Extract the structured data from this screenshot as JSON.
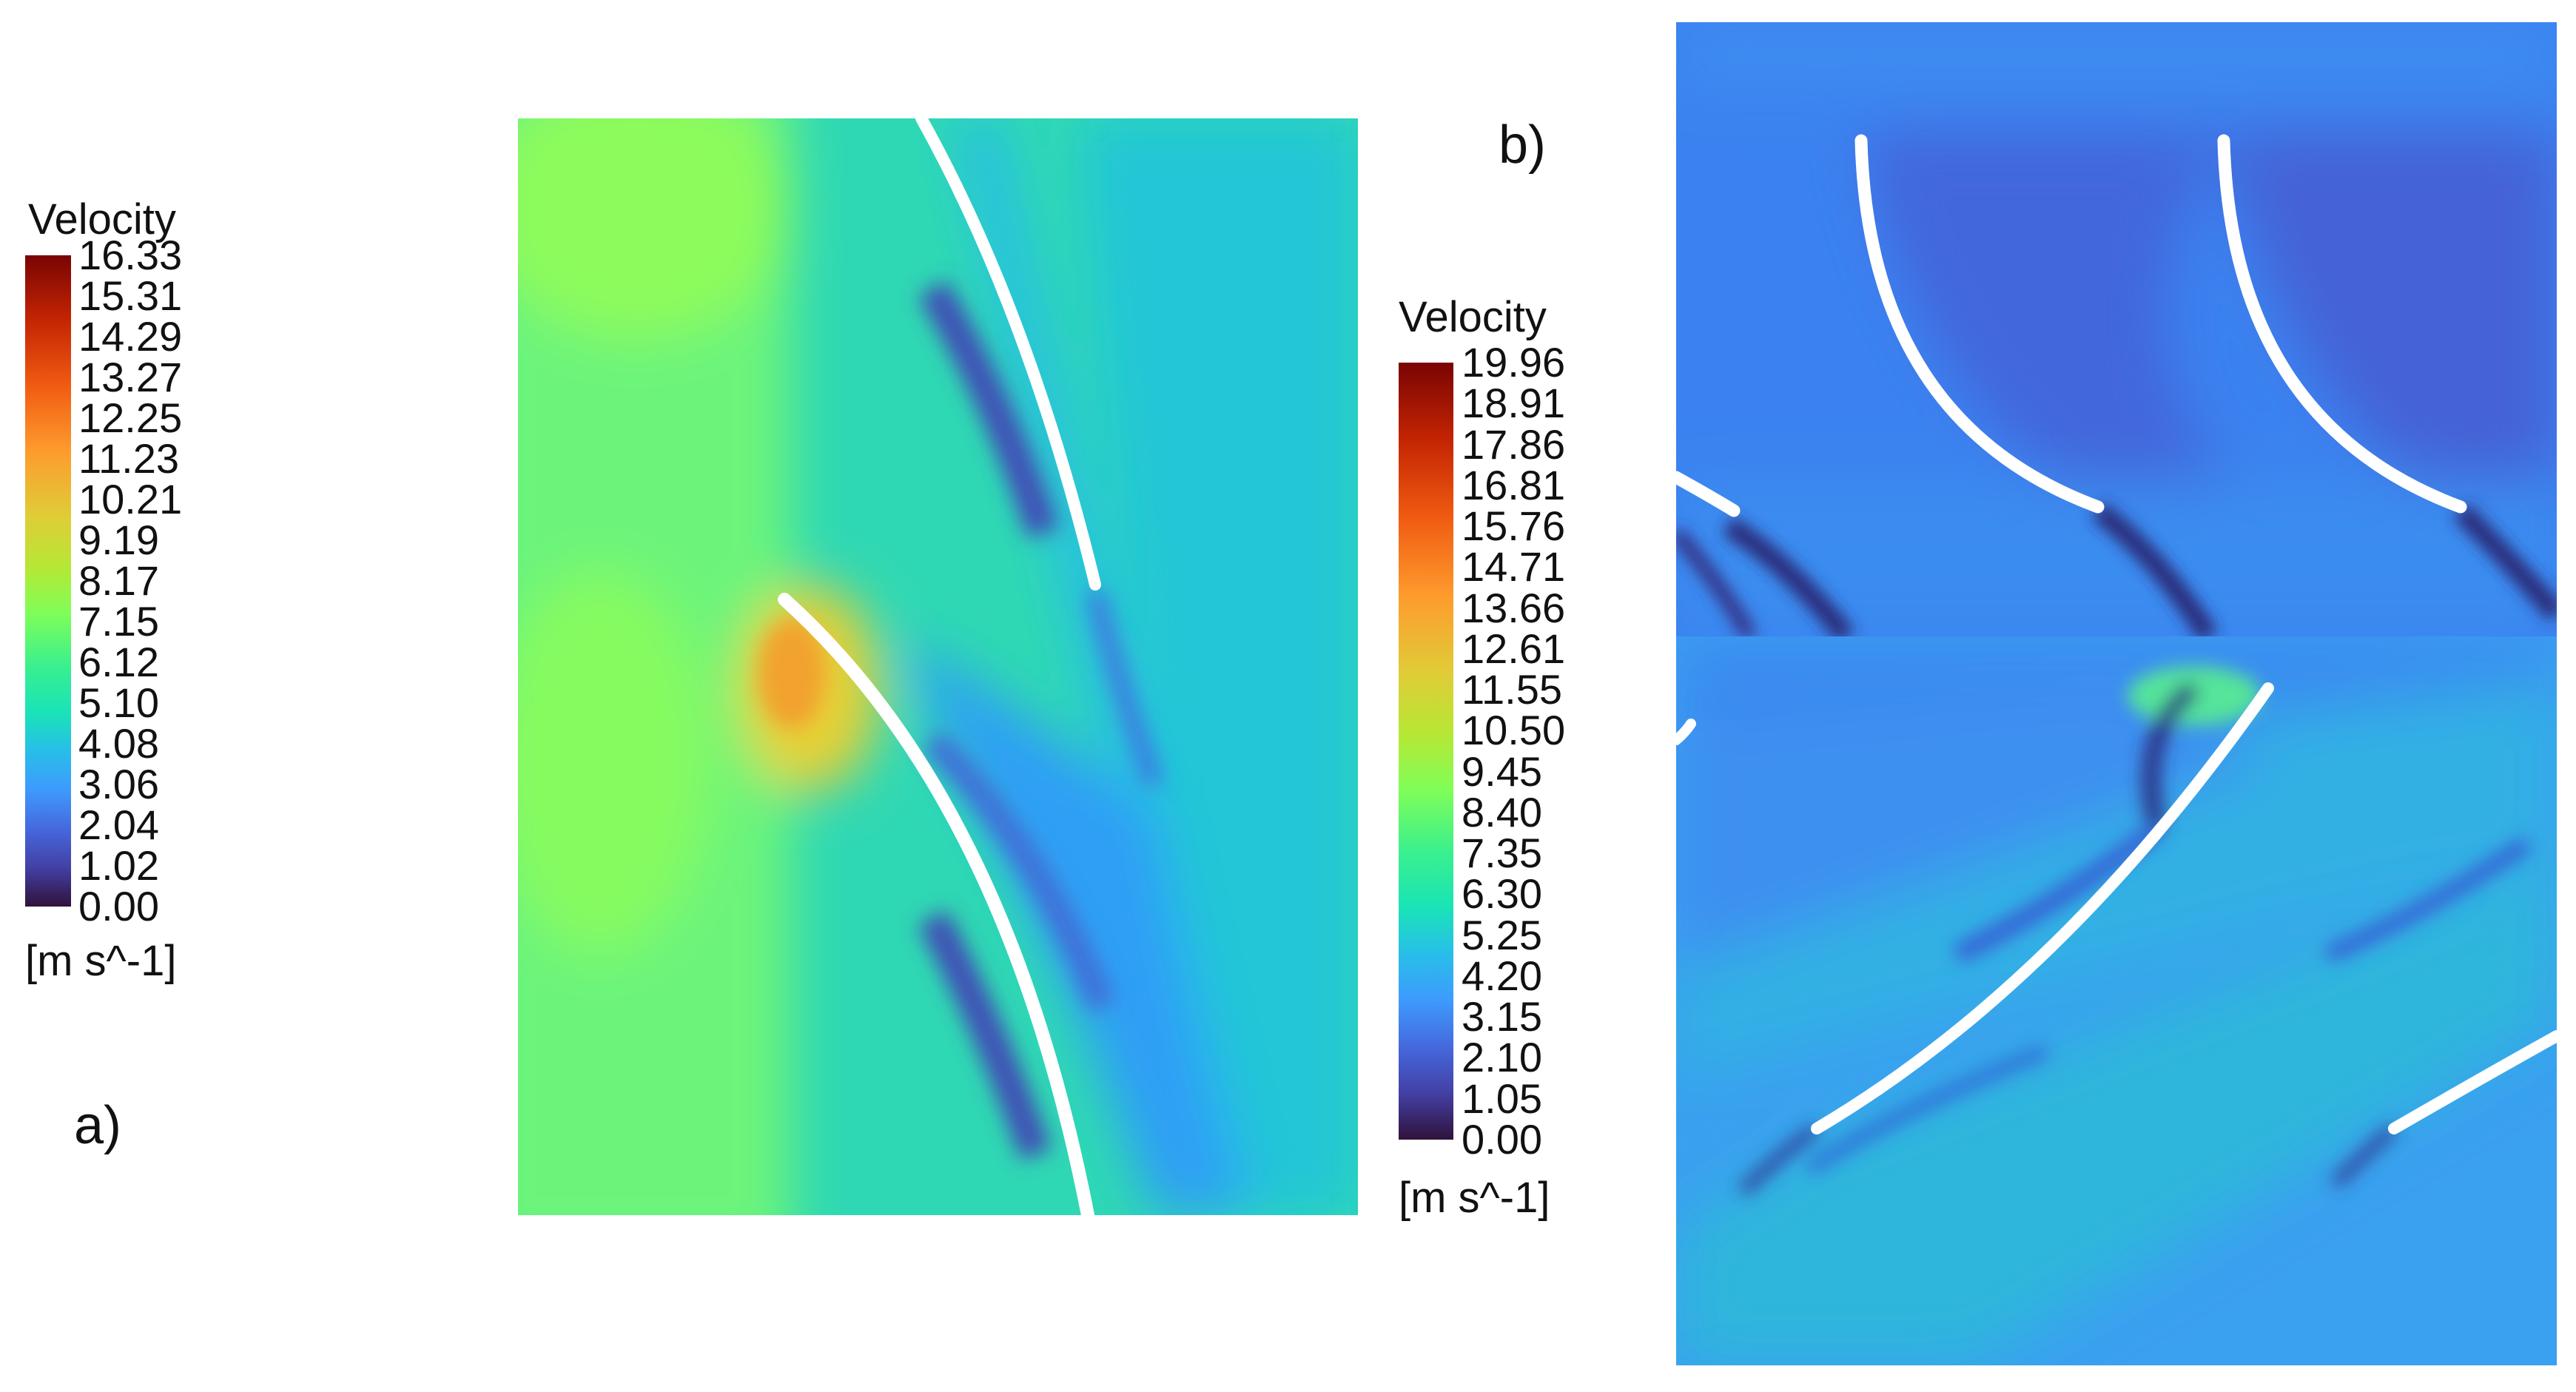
{
  "panel_a": {
    "label": "a)",
    "legend": {
      "title": "Velocity",
      "unit": "[m s^-1]",
      "ticks": [
        "16.33",
        "15.31",
        "14.29",
        "13.27",
        "12.25",
        "11.23",
        "10.21",
        "9.19",
        "8.17",
        "7.15",
        "6.12",
        "5.10",
        "4.08",
        "3.06",
        "2.04",
        "1.02",
        "0.00"
      ]
    }
  },
  "panel_b": {
    "label": "b)",
    "legend": {
      "title": "Velocity",
      "unit": "[m s^-1]",
      "ticks": [
        "19.96",
        "18.91",
        "17.86",
        "16.81",
        "15.76",
        "14.71",
        "13.66",
        "12.61",
        "11.55",
        "10.50",
        "9.45",
        "8.40",
        "7.35",
        "6.30",
        "5.25",
        "4.20",
        "3.15",
        "2.10",
        "1.05",
        "0.00"
      ]
    }
  },
  "colormap": [
    "#7a0403",
    "#c42503",
    "#f05b12",
    "#fe9b2d",
    "#e0cc37",
    "#b5e835",
    "#7ffe58",
    "#3af08e",
    "#1ae4b6",
    "#27bfe8",
    "#3e9bfe",
    "#4569de",
    "#4340a5",
    "#30123b"
  ]
}
